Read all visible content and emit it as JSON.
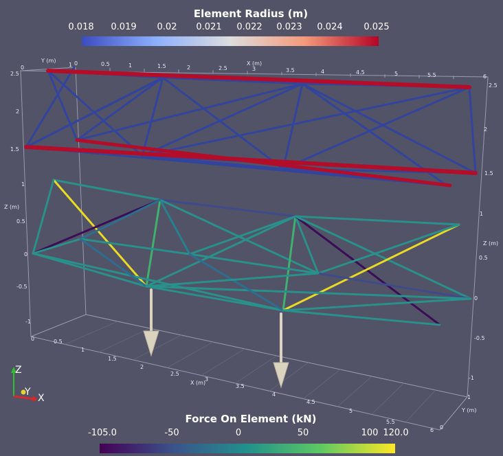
{
  "radius_colorbar": {
    "title": "Element Radius (m)",
    "ticks": [
      "0.018",
      "0.019",
      "0.02",
      "0.021",
      "0.022",
      "0.023",
      "0.024",
      "0.025"
    ],
    "range": [
      0.018,
      0.025
    ],
    "colors": [
      "#3b4cc0",
      "#8db0fe",
      "#dddddd",
      "#f49a7b",
      "#b40426"
    ]
  },
  "force_colorbar": {
    "title": "Force On Element (kN)",
    "ticks": [
      "-105.0",
      "-50",
      "0",
      "50",
      "100",
      "120.0"
    ],
    "range": [
      -105,
      120
    ],
    "colors": [
      "#440154",
      "#3b528b",
      "#21918c",
      "#5ec962",
      "#fde725"
    ]
  },
  "axes": {
    "x_title": "X (m)",
    "y_title": "Y (m)",
    "z_title": "Z (m)",
    "x_ticks_top": [
      "0",
      "0.5",
      "1",
      "1.5",
      "2",
      "2.5",
      "3",
      "3.5",
      "4",
      "4.5",
      "5",
      "5.5",
      "6"
    ],
    "x_ticks_bottom": [
      "0.5",
      "1",
      "1.5",
      "2",
      "2.5",
      "3",
      "3.5",
      "4",
      "4.5",
      "5",
      "5.5",
      "6"
    ],
    "z_ticks_left": [
      "2.5",
      "2",
      "1.5",
      "1",
      "0.5",
      "0",
      "-0.5",
      "-1"
    ],
    "z_ticks_right": [
      "2.5",
      "2",
      "1.5",
      "1",
      "0.5",
      "0",
      "-0.5",
      "-1"
    ],
    "y_ticks": [
      "0",
      "1"
    ]
  },
  "orientation": {
    "z": "Z",
    "y": "Y",
    "x": "X"
  },
  "colors": {
    "background": "#525366",
    "upper_truss": "#33449c",
    "upper_chord": "#b30d2a",
    "load_arrow": "#d9d3c0"
  }
}
